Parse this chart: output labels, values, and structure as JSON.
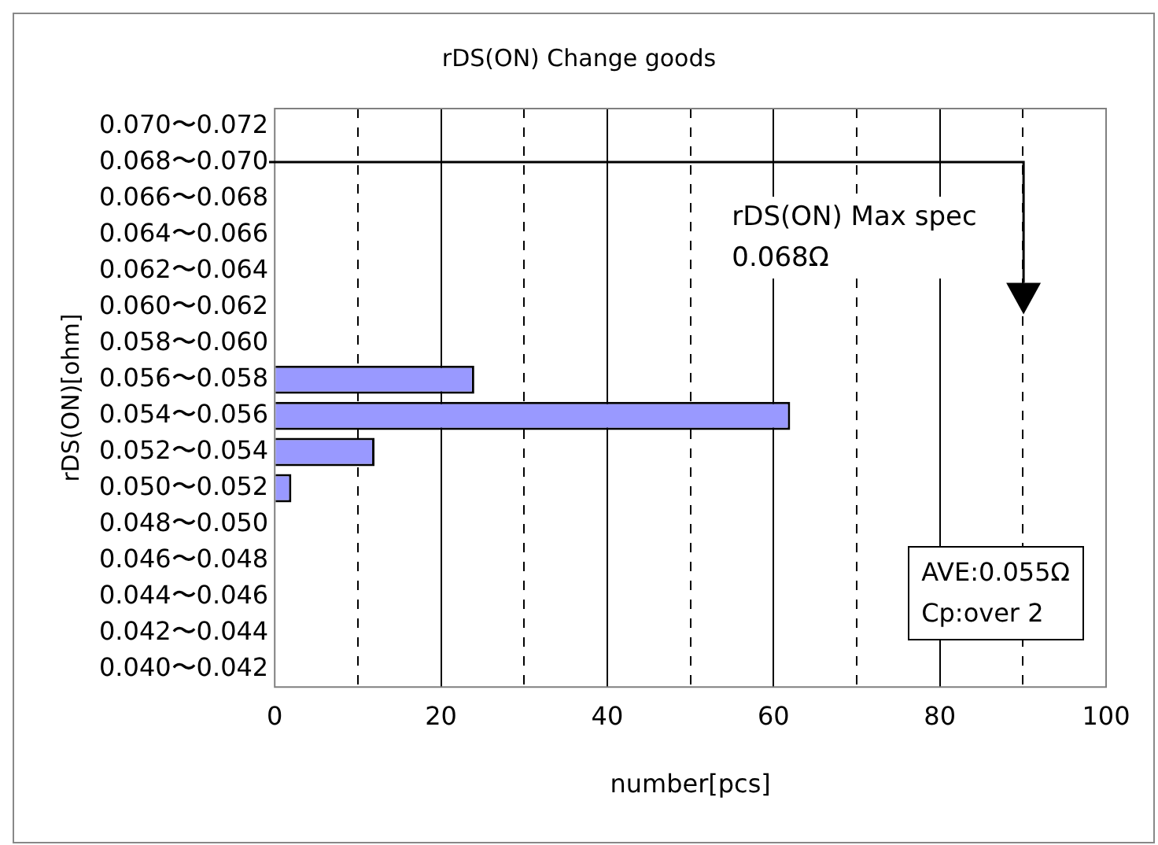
{
  "chart_data": {
    "type": "bar",
    "orientation": "horizontal",
    "title": "rDS(ON) Change goods",
    "xlabel": "number[pcs]",
    "ylabel": "rDS(ON)[ohm]",
    "categories": [
      "0.070〜0.072",
      "0.068〜0.070",
      "0.066〜0.068",
      "0.064〜0.066",
      "0.062〜0.064",
      "0.060〜0.062",
      "0.058〜0.060",
      "0.056〜0.058",
      "0.054〜0.056",
      "0.052〜0.054",
      "0.050〜0.052",
      "0.048〜0.050",
      "0.046〜0.048",
      "0.044〜0.046",
      "0.042〜0.044",
      "0.040〜0.042"
    ],
    "values": [
      0,
      0,
      0,
      0,
      0,
      0,
      0,
      24,
      62,
      12,
      2,
      0,
      0,
      0,
      0,
      0
    ],
    "color": "#9999ff",
    "xlim": [
      0,
      100
    ],
    "xticks": [
      0,
      {
        "value": 10,
        "label": null
      },
      20,
      {
        "value": 30,
        "label": null
      },
      40,
      {
        "value": 50,
        "label": null
      },
      60,
      {
        "value": 70,
        "label": null
      },
      80,
      {
        "value": 90,
        "label": null
      },
      100
    ],
    "grid": "x",
    "legend": false,
    "annotations": [
      "rDS(ON) Max spec\n0.068Ω",
      "AVE:0.055Ω",
      "Cp:over 2"
    ]
  }
}
